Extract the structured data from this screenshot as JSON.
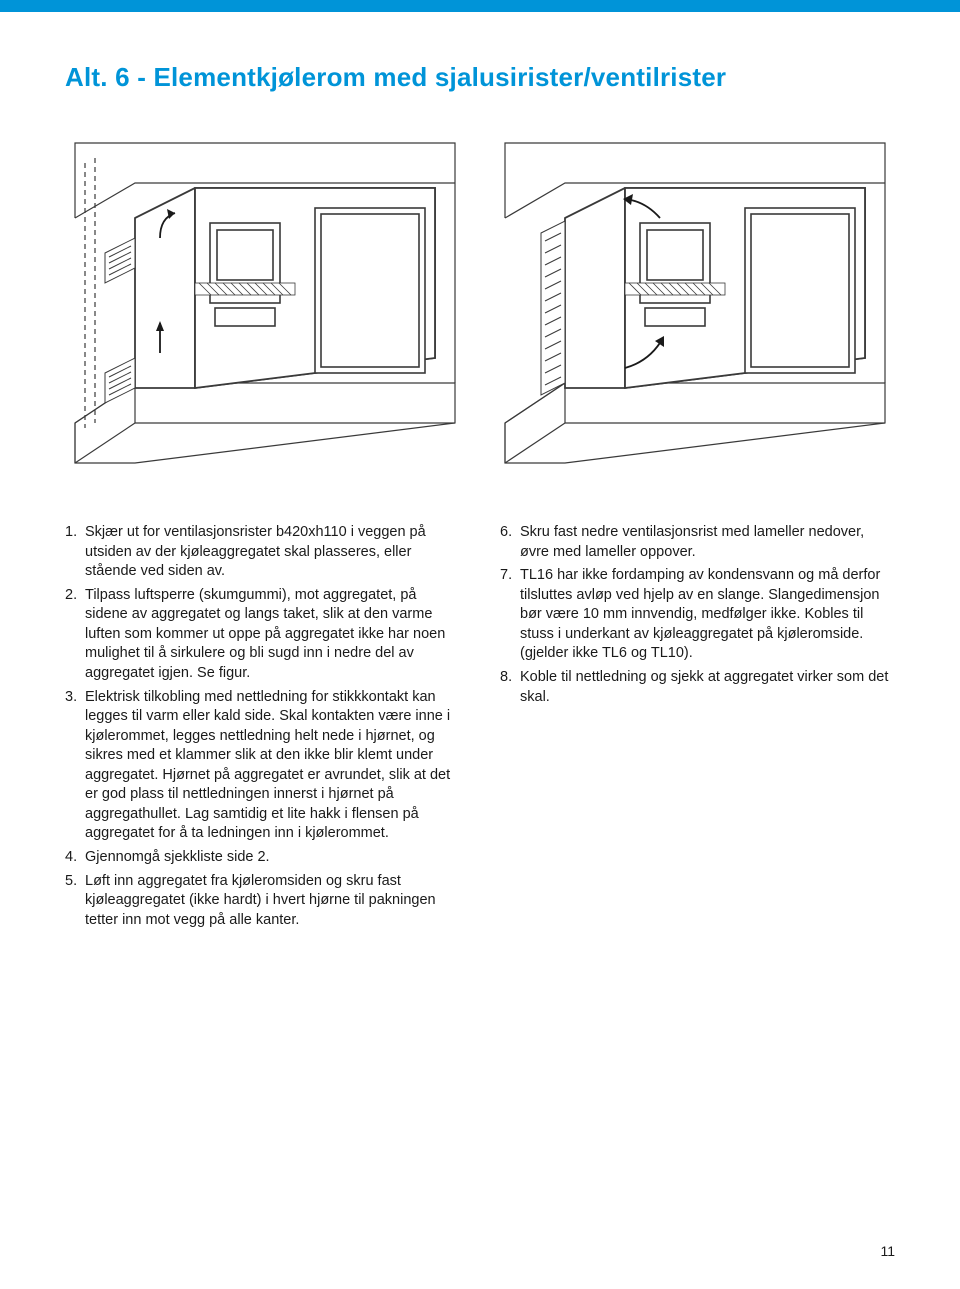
{
  "title": "Alt. 6 - Elementkjølerom med sjalusirister/ventilrister",
  "left_items": [
    {
      "n": "1.",
      "t": "Skjær ut for ventilasjonsrister b420xh110 i veggen på utsiden av der kjøleaggregatet skal plasseres, eller stående ved siden av."
    },
    {
      "n": "2.",
      "t": "Tilpass luftsperre (skumgummi), mot aggregatet, på sidene av aggregatet og langs taket, slik at den varme luften som kommer ut oppe på aggregatet ikke har noen mulighet til å sirkulere og bli sugd inn i nedre del av aggregatet igjen. Se figur."
    },
    {
      "n": "3.",
      "t": "Elektrisk tilkobling med nettledning for stikkkontakt kan legges til varm eller kald side. Skal kontakten være inne i kjølerommet, legges nettledning helt nede i hjørnet, og sikres med et klammer slik at den ikke blir klemt under aggregatet. Hjørnet på aggregatet er avrundet, slik at det er god plass til nettledningen innerst i hjørnet på aggregathullet. Lag samtidig et lite hakk i flensen på aggregatet for å ta ledningen inn i kjølerommet."
    },
    {
      "n": "4.",
      "t": "Gjennomgå sjekkliste side 2."
    },
    {
      "n": "5.",
      "t": "Løft inn aggregatet fra kjøleromsiden og skru fast kjøleaggregatet (ikke hardt) i hvert hjørne til pakningen tetter inn mot vegg på alle kanter."
    }
  ],
  "right_items": [
    {
      "n": "6.",
      "t": "Skru fast nedre ventilasjonsrist med lameller nedover, øvre med lameller oppover."
    },
    {
      "n": "7.",
      "t": "TL16 har ikke fordamping av kondensvann og må derfor tilsluttes avløp ved hjelp av en slange. Slangedimensjon bør være 10 mm innvendig, medfølger ikke. Kobles til stuss i underkant av kjøleaggregatet på kjøleromside. (gjelder ikke TL6 og TL10)."
    },
    {
      "n": "8.",
      "t": "Koble til nettledning og sjekk at aggregatet virker som det skal."
    }
  ],
  "page_number": "11",
  "colors": {
    "brand": "#0094d8",
    "text": "#1a1a1a",
    "line": "#3a3a3a",
    "light": "#ffffff"
  }
}
